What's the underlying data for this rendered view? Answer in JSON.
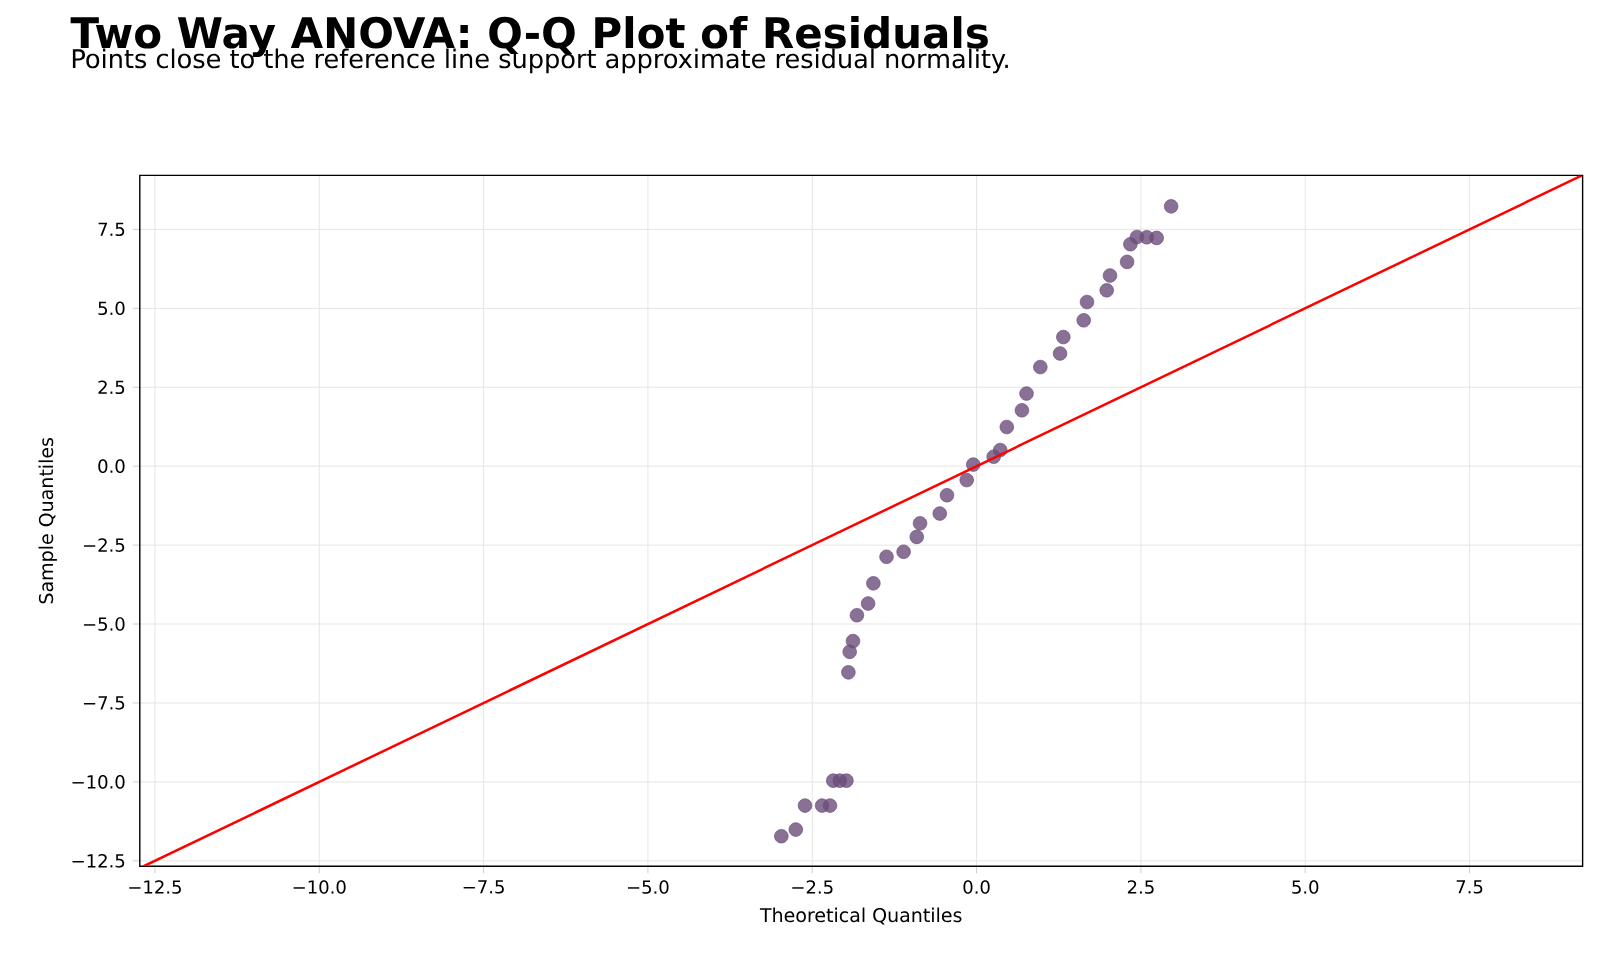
{
  "chart_data": {
    "type": "scatter",
    "title": "Two Way ANOVA: Q-Q Plot of Residuals",
    "subtitle": "Points close to the reference line support approximate residual normality.",
    "xlabel": "Theoretical Quantiles",
    "ylabel": "Sample Quantiles",
    "xlim": [
      -12.73,
      9.22
    ],
    "ylim": [
      -12.67,
      9.21
    ],
    "xticks": [
      {
        "value": -12.5,
        "label": "−12.5"
      },
      {
        "value": -10,
        "label": "−10.0"
      },
      {
        "value": -7.5,
        "label": "−7.5"
      },
      {
        "value": -5,
        "label": "−5.0"
      },
      {
        "value": -2.5,
        "label": "−2.5"
      },
      {
        "value": 0,
        "label": "0.0"
      },
      {
        "value": 2.5,
        "label": "2.5"
      },
      {
        "value": 5,
        "label": "5.0"
      },
      {
        "value": 7.5,
        "label": "7.5"
      }
    ],
    "yticks": [
      {
        "value": -12.5,
        "label": "−12.5"
      },
      {
        "value": -10,
        "label": "−10.0"
      },
      {
        "value": -7.5,
        "label": "−7.5"
      },
      {
        "value": -5,
        "label": "−5.0"
      },
      {
        "value": -2.5,
        "label": "−2.5"
      },
      {
        "value": 0,
        "label": "0.0"
      },
      {
        "value": 2.5,
        "label": "2.5"
      },
      {
        "value": 5,
        "label": "5.0"
      },
      {
        "value": 7.5,
        "label": "7.5"
      }
    ],
    "grid": true,
    "series": [
      {
        "color": "#6b4c7a",
        "marker": "circle",
        "x": [
          -2.97,
          -2.75,
          -2.61,
          -2.35,
          -2.23,
          -2.18,
          -2.08,
          -1.98,
          -1.95,
          -1.93,
          -1.88,
          -1.82,
          -1.65,
          -1.57,
          -1.37,
          -1.11,
          -0.91,
          -0.86,
          -0.56,
          -0.45,
          -0.15,
          -0.05,
          0.26,
          0.36,
          0.46,
          0.69,
          0.76,
          0.97,
          1.27,
          1.32,
          1.63,
          1.68,
          1.98,
          2.03,
          2.29,
          2.34,
          2.44,
          2.59,
          2.74,
          2.96
        ],
        "values": [
          -11.72,
          -11.51,
          -10.75,
          -10.75,
          -10.75,
          -9.96,
          -9.96,
          -9.96,
          -6.53,
          -5.88,
          -5.54,
          -4.72,
          -4.35,
          -3.71,
          -2.87,
          -2.71,
          -2.24,
          -1.81,
          -1.5,
          -0.92,
          -0.44,
          0.05,
          0.3,
          0.51,
          1.24,
          1.77,
          2.3,
          3.14,
          3.57,
          4.09,
          4.62,
          5.2,
          5.57,
          6.04,
          6.47,
          7.03,
          7.26,
          7.25,
          7.23,
          8.23
        ]
      },
      {
        "type": "line",
        "color": "#ff0000",
        "line_style": "solid",
        "x": [
          -12.67,
          9.21
        ],
        "values": [
          -12.67,
          9.21
        ]
      }
    ]
  }
}
